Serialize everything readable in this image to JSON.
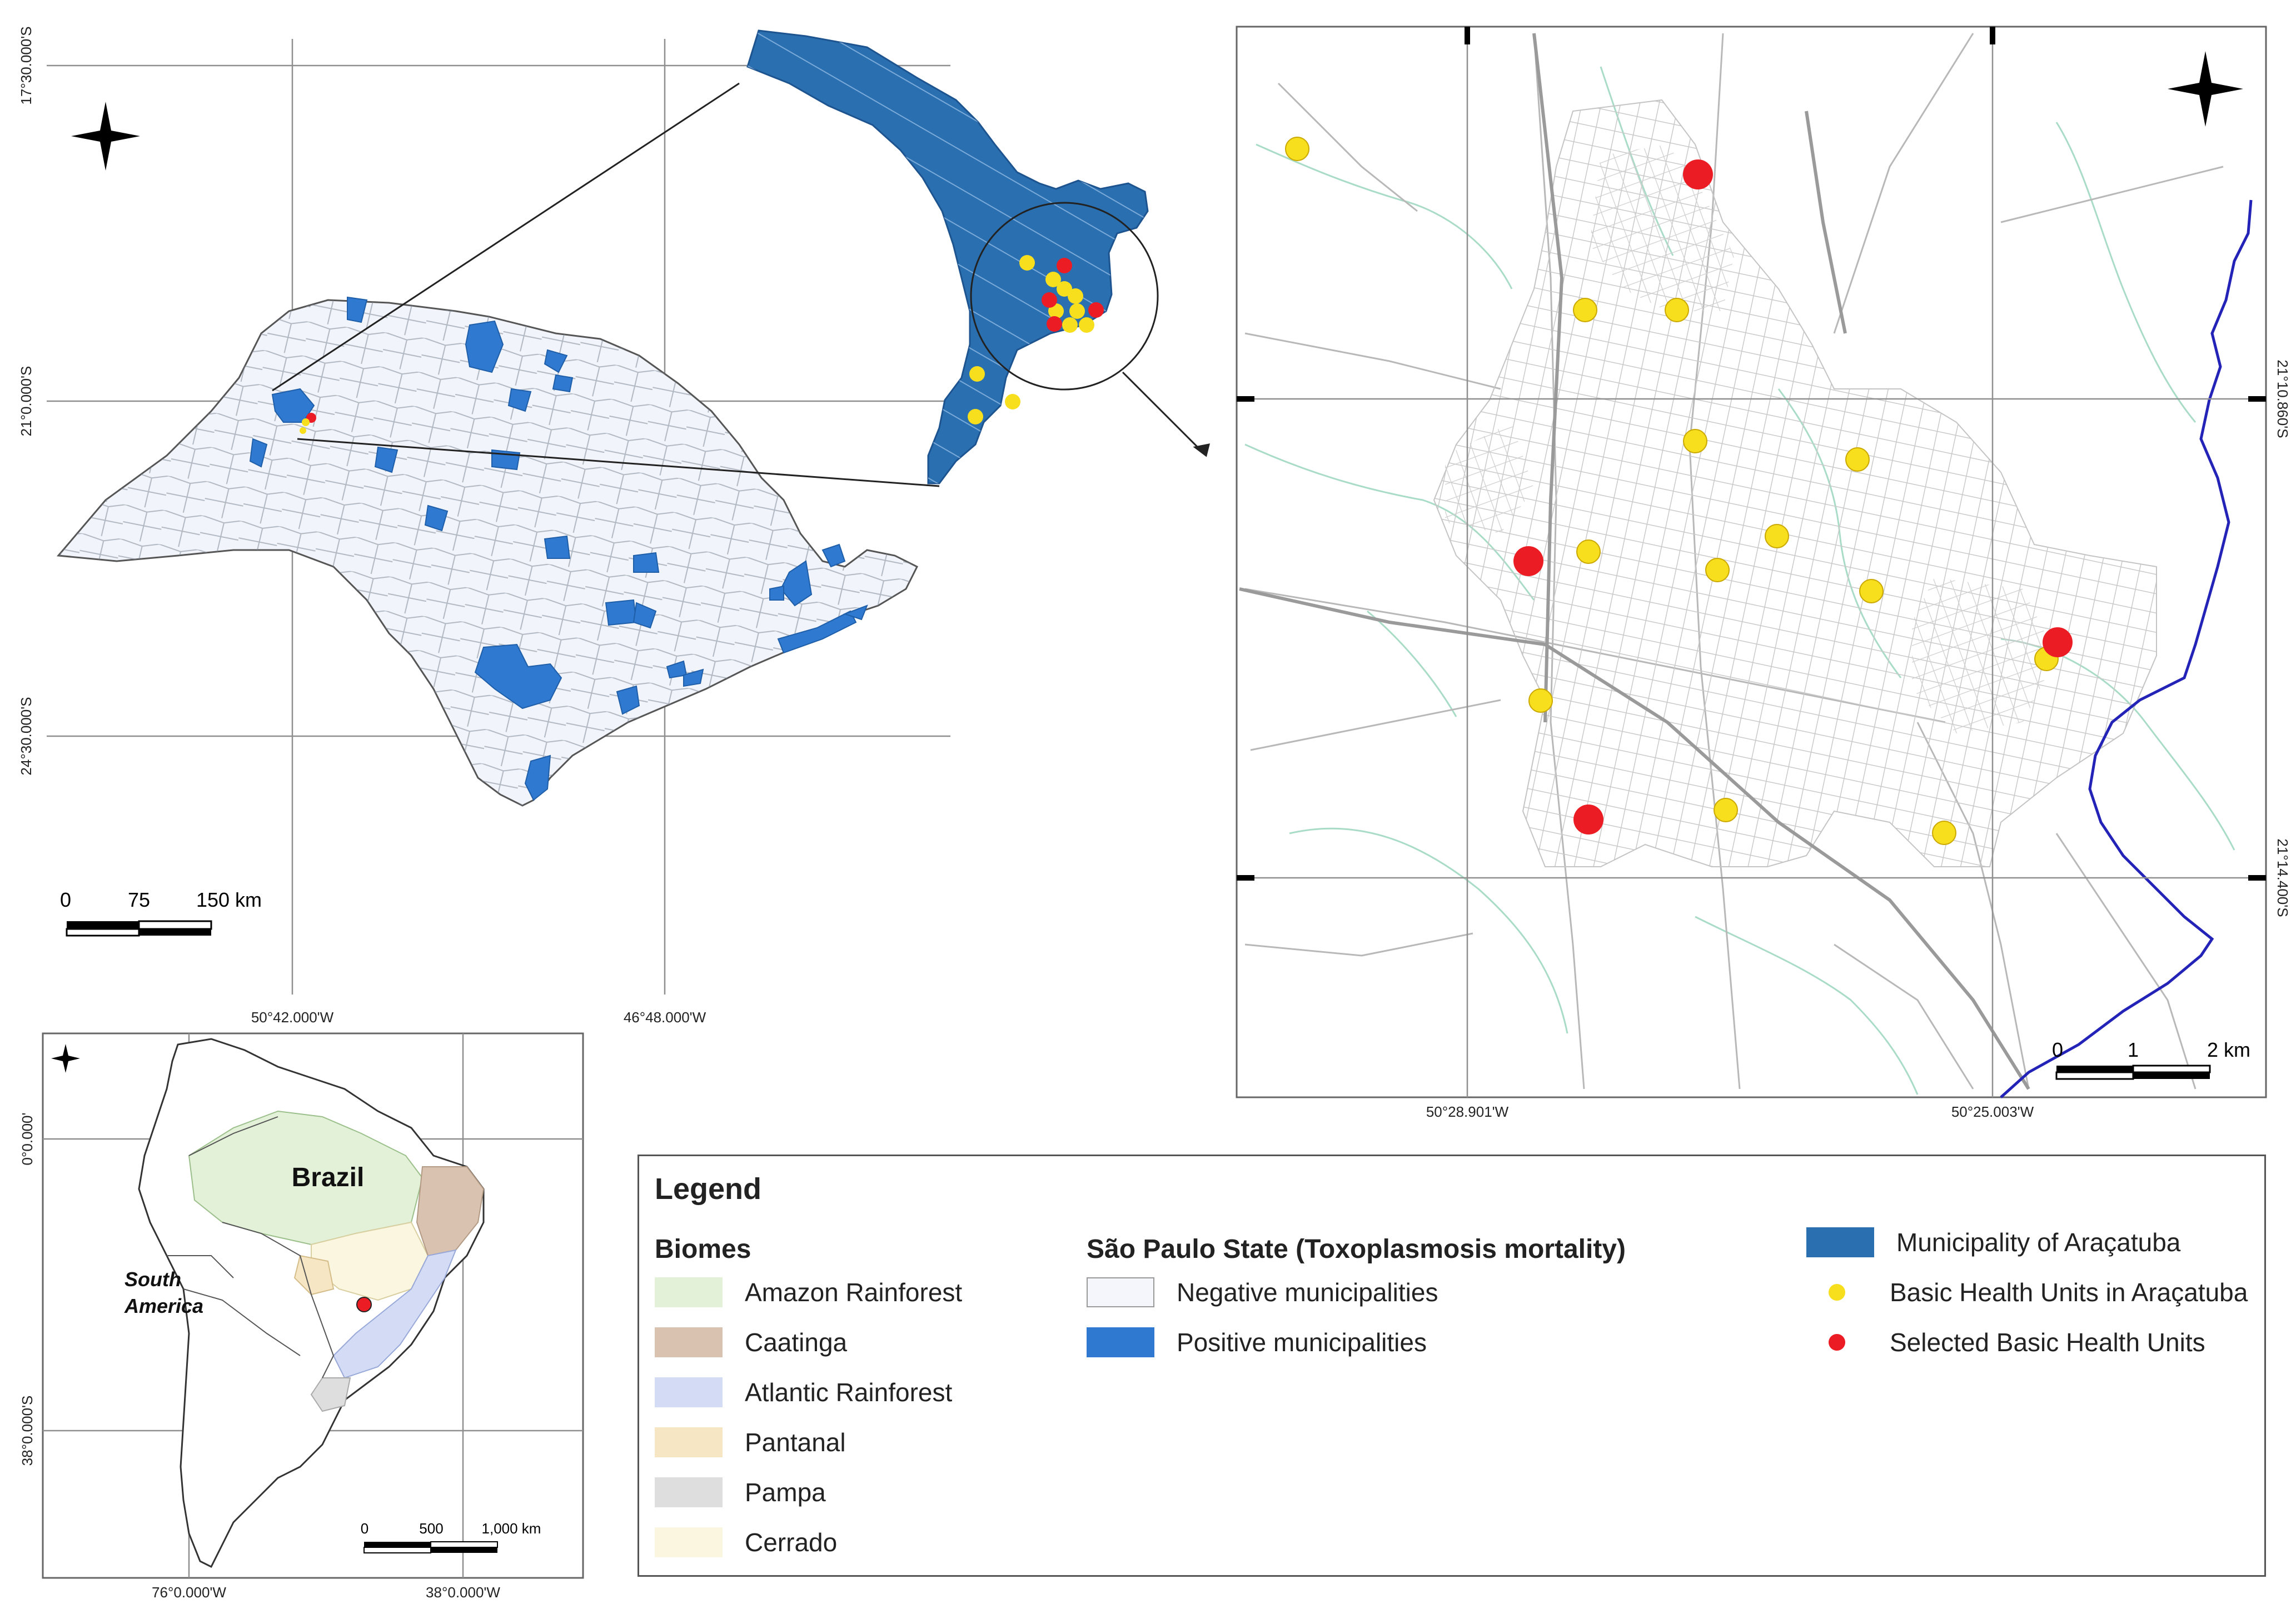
{
  "sp_map": {
    "lat_labels": [
      "17°30.000'S",
      "21°0.000'S",
      "24°30.000'S"
    ],
    "lon_labels": [
      "50°42.000'W",
      "46°48.000'W"
    ],
    "scale": {
      "ticks": [
        "0",
        "75",
        "150 km"
      ]
    }
  },
  "city_map": {
    "lat_labels": [
      "21°10.860'S",
      "21°14.400'S"
    ],
    "lon_labels": [
      "50°28.901'W",
      "50°25.003'W"
    ],
    "scale": {
      "ticks": [
        "0",
        "1",
        "2 km"
      ]
    }
  },
  "south_america_map": {
    "country_label": "Brazil",
    "continent_label": [
      "South",
      "America"
    ],
    "lat_labels": [
      "0°0.000'",
      "38°0.000'S"
    ],
    "lon_labels": [
      "76°0.000'W",
      "38°0.000'W"
    ],
    "scale": {
      "ticks": [
        "0",
        "500",
        "1,000 km"
      ]
    }
  },
  "legend": {
    "title": "Legend",
    "biomes": {
      "heading": "Biomes",
      "items": [
        {
          "label": "Amazon Rainforest",
          "color": "#e3f1d9"
        },
        {
          "label": "Caatinga",
          "color": "#d9c3b0"
        },
        {
          "label": "Atlantic Rainforest",
          "color": "#d4dcf5"
        },
        {
          "label": "Pantanal",
          "color": "#f6e6c4"
        },
        {
          "label": "Pampa",
          "color": "#dedede"
        },
        {
          "label": "Cerrado",
          "color": "#fbf6e0"
        }
      ]
    },
    "sao_paulo": {
      "heading": "São Paulo State (Toxoplasmosis mortality)",
      "items": [
        {
          "label": "Negative municipalities",
          "color": "#f4f6fb"
        },
        {
          "label": "Positive municipalities",
          "color": "#2f7ad0"
        }
      ]
    },
    "aracatuba": {
      "items": [
        {
          "label": "Municipality of Araçatuba",
          "color": "#2a6fb0"
        },
        {
          "label": "Basic Health Units in Araçatuba",
          "color": "#f7df1e"
        },
        {
          "label": "Selected Basic Health Units",
          "color": "#ec1c24"
        }
      ]
    }
  }
}
